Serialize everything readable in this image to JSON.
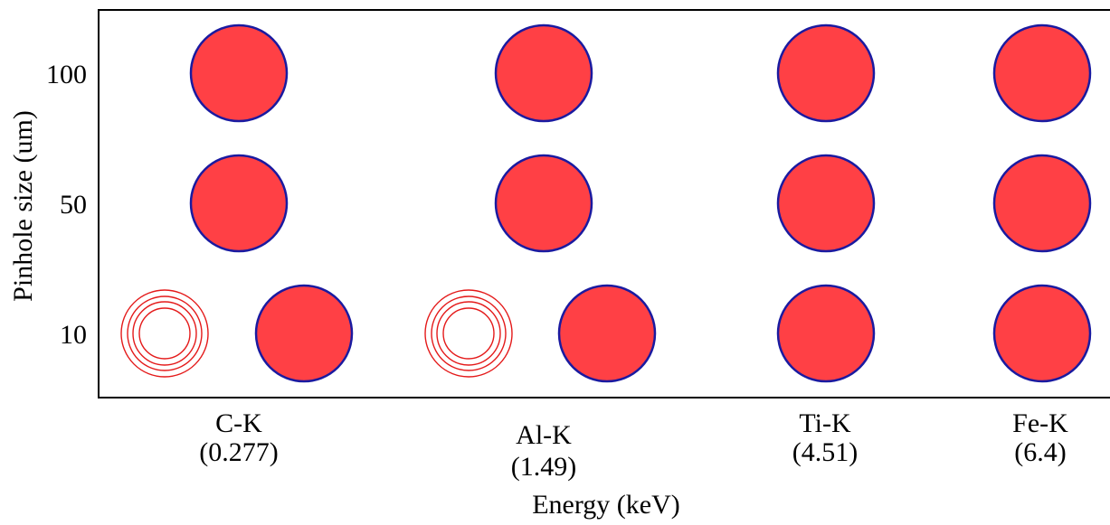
{
  "axes": {
    "ylabel": "Pinhole size (um)",
    "xlabel": "Energy (keV)"
  },
  "rows": [
    {
      "label": "100"
    },
    {
      "label": "50"
    },
    {
      "label": "10"
    }
  ],
  "columns": [
    {
      "line1": "C-K",
      "line2": "(0.277)"
    },
    {
      "line1": "Al-K",
      "line2": "(1.49)"
    },
    {
      "line1": "Ti-K",
      "line2": "(4.51)"
    },
    {
      "line1": "Fe-K",
      "line2": "(6.4)"
    }
  ],
  "colors": {
    "solid_fill": "#ff4045",
    "solid_stroke": "#1a1aa0",
    "ring_stroke": "#e41a1a",
    "frame": "#000000"
  }
}
